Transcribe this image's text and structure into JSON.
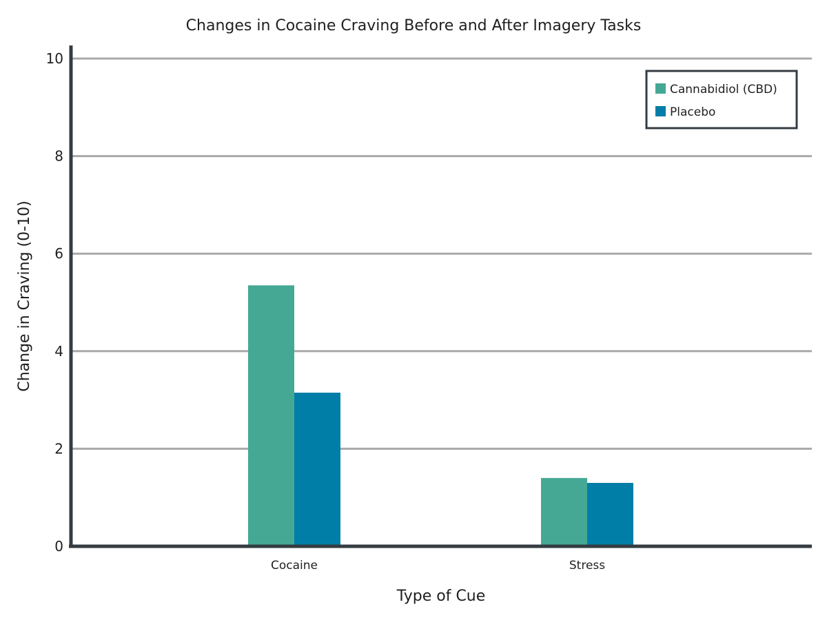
{
  "chart_data": {
    "type": "bar",
    "title": "Changes in Cocaine Craving Before and After Imagery Tasks",
    "xlabel": "Type of Cue",
    "ylabel": "Change in Craving (0-10)",
    "categories": [
      "Cocaine",
      "Stress"
    ],
    "series": [
      {
        "name": "Cannabidiol (CBD)",
        "color": "#45a894",
        "values": [
          5.35,
          1.4
        ]
      },
      {
        "name": "Placebo",
        "color": "#007ea8",
        "values": [
          3.15,
          1.3
        ]
      }
    ],
    "ylim": [
      0,
      10
    ],
    "yticks": [
      "0",
      "2",
      "4",
      "6",
      "8",
      "10"
    ],
    "grid": true,
    "legend_position": "top-right"
  }
}
